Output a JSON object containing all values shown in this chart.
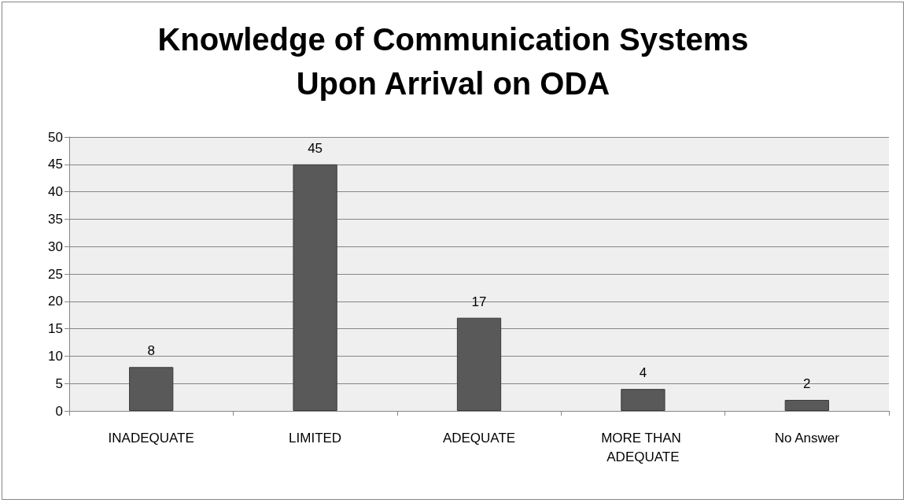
{
  "chart_data": {
    "type": "bar",
    "title": "Knowledge of Communication Systems Upon Arrival on ODA",
    "categories": [
      "INADEQUATE",
      "LIMITED",
      "ADEQUATE",
      "MORE THAN ADEQUATE",
      "No Answer"
    ],
    "values": [
      8,
      45,
      17,
      4,
      2
    ],
    "color": "#595959",
    "ylim": [
      0,
      50
    ],
    "yticks": [
      0,
      5,
      10,
      15,
      20,
      25,
      30,
      35,
      40,
      45,
      50
    ],
    "grid": "y",
    "data_labels": true
  }
}
